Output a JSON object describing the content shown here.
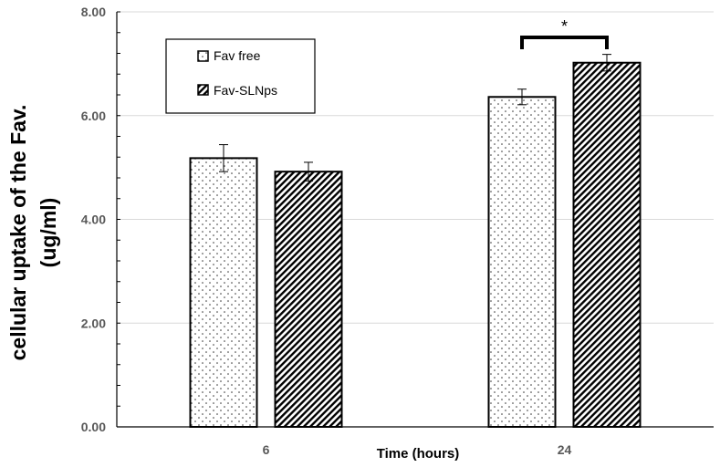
{
  "chart_data": {
    "type": "bar",
    "title": "",
    "xlabel": "Time (hours)",
    "ylabel_lines": [
      "cellular uptake of the Fav.",
      "(ug/ml)"
    ],
    "categories": [
      "6",
      "24"
    ],
    "ylim": [
      0,
      8
    ],
    "yticks": [
      "0.00",
      "2.00",
      "4.00",
      "6.00",
      "8.00"
    ],
    "grid": true,
    "legend_position": "top-left",
    "series": [
      {
        "name": "Fav free",
        "values": [
          5.18,
          6.36
        ],
        "errors": [
          0.26,
          0.15
        ],
        "pattern": "dots"
      },
      {
        "name": "Fav-SLNps",
        "values": [
          4.92,
          7.02
        ],
        "errors": [
          0.18,
          0.16
        ],
        "pattern": "diagonal-hatch"
      }
    ],
    "annotations": [
      {
        "text": "*",
        "category": "24",
        "type": "significance-bracket"
      }
    ]
  },
  "colors": {
    "bar_fill": "#ffffff",
    "bar_stroke": "#000000",
    "grid": "#d9d9d9",
    "axis": "#000000",
    "tick_text": "#595959"
  }
}
